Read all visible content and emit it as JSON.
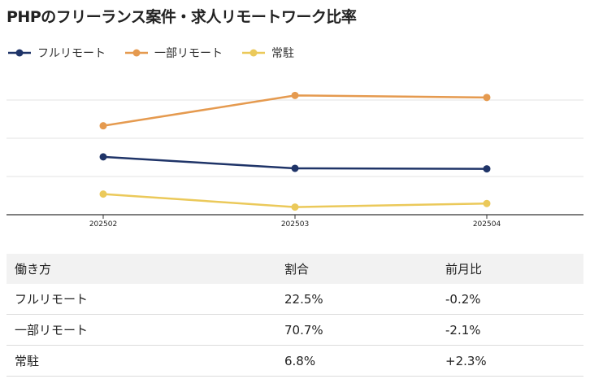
{
  "title": "PHPのフリーランス案件・求人リモートワーク比率",
  "legend": [
    {
      "label": "フルリモート",
      "color": "#1f3468"
    },
    {
      "label": "一部リモート",
      "color": "#e59a4f"
    },
    {
      "label": "常駐",
      "color": "#ebc95a"
    }
  ],
  "chart_data": {
    "type": "line",
    "x": [
      "202502",
      "202503",
      "202504"
    ],
    "series": [
      {
        "name": "フルリモート",
        "color": "#1f3468",
        "values": [
          22.7,
          18.2,
          18.0
        ]
      },
      {
        "name": "一部リモート",
        "color": "#e59a4f",
        "values": [
          34.9,
          46.8,
          46.0
        ]
      },
      {
        "name": "常駐",
        "color": "#ebc95a",
        "values": [
          8.1,
          3.0,
          4.4
        ]
      }
    ],
    "ylim": [
      0,
      60
    ],
    "grid": true,
    "title": "PHPのフリーランス案件・求人リモートワーク比率",
    "xlabel": "",
    "ylabel": "",
    "legend_position": "top-left"
  },
  "table": {
    "headers": [
      "働き方",
      "割合",
      "前月比"
    ],
    "rows": [
      [
        "フルリモート",
        "22.5%",
        "-0.2%"
      ],
      [
        "一部リモート",
        "70.7%",
        "-2.1%"
      ],
      [
        "常駐",
        "6.8%",
        "+2.3%"
      ]
    ]
  }
}
